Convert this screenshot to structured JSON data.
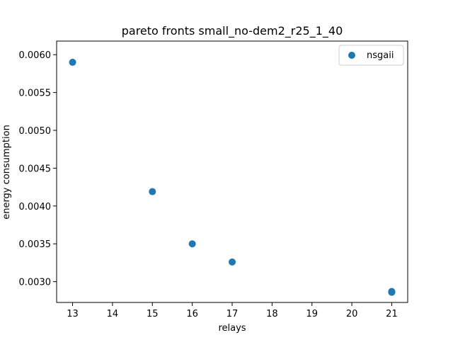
{
  "chart_data": {
    "type": "scatter",
    "title": "pareto fronts small_no-dem2_r25_1_40",
    "xlabel": "relays",
    "ylabel": "energy consumption",
    "xlim": [
      12.6,
      21.4
    ],
    "ylim": [
      0.002725,
      0.00618
    ],
    "xticks": [
      13,
      14,
      15,
      16,
      17,
      18,
      19,
      20,
      21
    ],
    "xtick_labels": [
      "13",
      "14",
      "15",
      "16",
      "17",
      "18",
      "19",
      "20",
      "21"
    ],
    "yticks": [
      0.003,
      0.0035,
      0.004,
      0.0045,
      0.005,
      0.0055,
      0.006
    ],
    "ytick_labels": [
      "0.0030",
      "0.0035",
      "0.0040",
      "0.0045",
      "0.0050",
      "0.0055",
      "0.0060"
    ],
    "grid": false,
    "legend_position": "top-right",
    "series": [
      {
        "name": "nsgaii",
        "color": "#1f77b4",
        "marker": "circle",
        "x": [
          13,
          15,
          16,
          17,
          21,
          21,
          21
        ],
        "y": [
          0.0059,
          0.00419,
          0.0035,
          0.00326,
          0.00287,
          0.00286,
          0.00286
        ]
      }
    ]
  }
}
